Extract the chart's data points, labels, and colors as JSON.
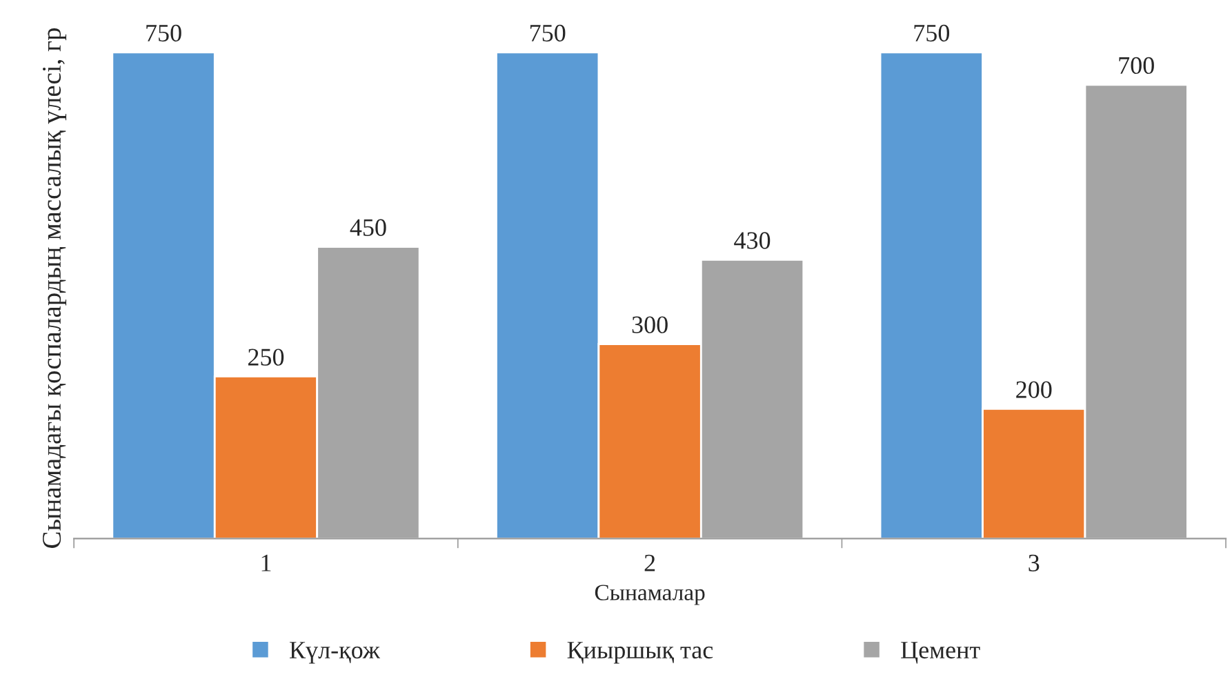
{
  "chart_data": {
    "type": "bar",
    "xlabel": "Сынамалар",
    "ylabel": "Сынамадағы қоспалардың массалық үлесі, гр",
    "categories": [
      "1",
      "2",
      "3"
    ],
    "series": [
      {
        "name": "Күл-қож",
        "color": "#5b9bd5",
        "values": [
          750,
          750,
          750
        ]
      },
      {
        "name": "Қиыршық тас",
        "color": "#ed7d31",
        "values": [
          250,
          300,
          200
        ]
      },
      {
        "name": "Цемент",
        "color": "#a5a5a5",
        "values": [
          450,
          430,
          700
        ]
      }
    ],
    "data_labels": true,
    "legend": "bottom",
    "grid": false,
    "tick_labels": "x"
  }
}
